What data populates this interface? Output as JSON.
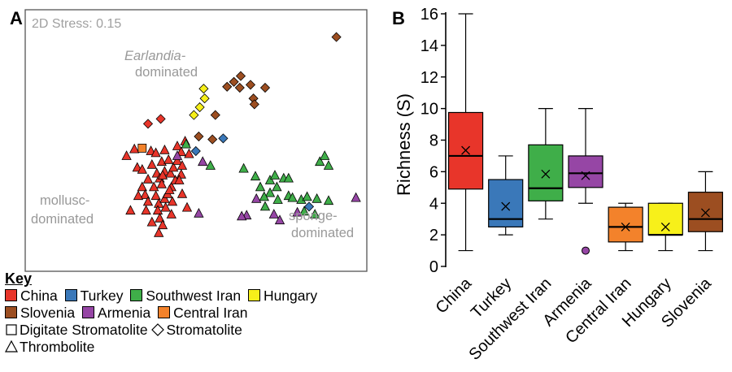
{
  "panel_a": {
    "label": "A",
    "stress": "2D Stress: 0.15",
    "annotations": {
      "earlandia_italic": "Earlandia-",
      "earlandia_rest": "dominated",
      "mollusc_1": "mollusc-",
      "mollusc_2": "dominated",
      "sponge_1": "sponge-",
      "sponge_2": "dominated"
    }
  },
  "panel_b": {
    "label": "B",
    "ylabel": "Richness (S)"
  },
  "key": {
    "title": "Key",
    "regions": [
      {
        "name": "China",
        "color": "#e8352a"
      },
      {
        "name": "Turkey",
        "color": "#3a78b9"
      },
      {
        "name": "Southwest Iran",
        "color": "#3fae49"
      },
      {
        "name": "Hungary",
        "color": "#f7f01a"
      },
      {
        "name": "Slovenia",
        "color": "#9c4e21"
      },
      {
        "name": "Armenia",
        "color": "#9646a5"
      },
      {
        "name": "Central Iran",
        "color": "#f3822b"
      }
    ],
    "shapes": [
      {
        "name": "Digitate Stromatolite",
        "icon": "square-icon"
      },
      {
        "name": "Stromatolite",
        "icon": "diamond-icon"
      },
      {
        "name": "Thrombolite",
        "icon": "triangle-icon"
      }
    ]
  },
  "chart_data": [
    {
      "type": "scatter",
      "title": "2D Stress: 0.15",
      "xlabel": "",
      "ylabel": "",
      "axes": "none",
      "series": [
        {
          "name": "China",
          "color": "#e8352a",
          "shape": "triangle",
          "points": [
            [
              -7.2,
              -1.0
            ],
            [
              -6.4,
              -0.3
            ],
            [
              -4.7,
              -0.5
            ],
            [
              -6.1,
              -2.2
            ],
            [
              -4.6,
              -1.9
            ],
            [
              -5.6,
              -2.4
            ],
            [
              -4.1,
              -2.8
            ],
            [
              -5.0,
              -3.4
            ],
            [
              -5.6,
              -4.2
            ],
            [
              -4.4,
              -4.2
            ],
            [
              -3.8,
              -3.3
            ],
            [
              -3.3,
              -2.6
            ],
            [
              -3.6,
              -1.6
            ],
            [
              -2.9,
              -1.4
            ],
            [
              -3.3,
              -0.4
            ],
            [
              -4.2,
              -0.7
            ],
            [
              -3.6,
              -3.9
            ],
            [
              -4.2,
              -5.1
            ],
            [
              -5.3,
              -5.0
            ],
            [
              -6.0,
              -5.1
            ],
            [
              -5.0,
              -5.7
            ],
            [
              -3.9,
              -5.9
            ],
            [
              -3.3,
              -5.4
            ],
            [
              -3.0,
              -4.9
            ],
            [
              -2.6,
              -4.2
            ],
            [
              -2.2,
              -3.5
            ],
            [
              -2.7,
              -2.8
            ],
            [
              -2.4,
              -2.2
            ],
            [
              -2.0,
              -1.5
            ],
            [
              -1.5,
              -2.0
            ],
            [
              -1.6,
              -2.9
            ],
            [
              -1.8,
              -3.5
            ],
            [
              -3.2,
              -6.3
            ],
            [
              -4.0,
              -6.6
            ],
            [
              -5.2,
              -6.6
            ],
            [
              -6.8,
              -6.6
            ],
            [
              -2.6,
              -7.0
            ],
            [
              -1.5,
              -4.9
            ],
            [
              -2.5,
              -5.7
            ],
            [
              -3.8,
              -7.4
            ],
            [
              -4.6,
              -7.8
            ],
            [
              -3.9,
              -8.9
            ],
            [
              -3.5,
              -8.1
            ],
            [
              -2.8,
              -4.5
            ],
            [
              -3.5,
              -3.0
            ],
            [
              -1.0,
              -6.3
            ],
            [
              -2.0,
              0.0
            ],
            [
              -1.2,
              0.5
            ],
            [
              -0.8,
              -0.8
            ],
            [
              -1.6,
              -0.6
            ]
          ]
        },
        {
          "name": "China",
          "color": "#e8352a",
          "shape": "diamond",
          "points": [
            [
              -5.0,
              2.3
            ],
            [
              -3.7,
              2.8
            ]
          ]
        },
        {
          "name": "Turkey",
          "color": "#3a78b9",
          "shape": "diamond",
          "points": [
            [
              -0.1,
              -0.5
            ],
            [
              2.7,
              0.8
            ],
            [
              11.5,
              -6.2
            ]
          ]
        },
        {
          "name": "Southwest Iran",
          "color": "#3fae49",
          "shape": "triangle",
          "points": [
            [
              -1.1,
              0.2
            ],
            [
              1.4,
              -2.0
            ],
            [
              4.8,
              -2.3
            ],
            [
              6.0,
              -3.1
            ],
            [
              6.5,
              -4.2
            ],
            [
              7.5,
              -3.5
            ],
            [
              8.0,
              -3.0
            ],
            [
              8.9,
              -3.3
            ],
            [
              9.4,
              -3.3
            ],
            [
              8.2,
              -4.2
            ],
            [
              9.4,
              -5.1
            ],
            [
              8.3,
              -5.5
            ],
            [
              7.5,
              -4.8
            ],
            [
              6.9,
              -5.2
            ],
            [
              7.0,
              -6.2
            ],
            [
              9.8,
              -5.3
            ],
            [
              10.7,
              -5.5
            ],
            [
              11.3,
              -5.2
            ],
            [
              12.3,
              -5.4
            ],
            [
              11.0,
              -6.7
            ],
            [
              12.1,
              -7.0
            ],
            [
              13.5,
              -5.6
            ],
            [
              12.6,
              -1.6
            ],
            [
              13.1,
              -1.0
            ],
            [
              13.5,
              -2.0
            ]
          ]
        },
        {
          "name": "Hungary",
          "color": "#f7f01a",
          "shape": "diamond",
          "points": [
            [
              0.7,
              5.9
            ],
            [
              0.8,
              4.9
            ],
            [
              0.3,
              4.0
            ],
            [
              -0.3,
              3.2
            ]
          ]
        },
        {
          "name": "Slovenia",
          "color": "#9c4e21",
          "shape": "diamond",
          "points": [
            [
              14.3,
              11.2
            ],
            [
              4.5,
              7.2
            ],
            [
              3.8,
              6.6
            ],
            [
              3.1,
              6.1
            ],
            [
              4.4,
              6.0
            ],
            [
              5.5,
              6.3
            ],
            [
              7.0,
              6.0
            ],
            [
              5.8,
              4.9
            ],
            [
              5.9,
              4.3
            ],
            [
              1.9,
              3.2
            ],
            [
              0.2,
              1.0
            ],
            [
              1.6,
              0.7
            ]
          ]
        },
        {
          "name": "Armenia",
          "color": "#9646a5",
          "shape": "triangle",
          "points": [
            [
              -2.0,
              -1.0
            ],
            [
              0.6,
              -1.6
            ],
            [
              6.1,
              -5.4
            ],
            [
              5.1,
              -7.1
            ],
            [
              4.6,
              -7.2
            ],
            [
              7.9,
              -7.0
            ],
            [
              8.5,
              -7.6
            ],
            [
              10.3,
              -6.8
            ],
            [
              16.3,
              -5.3
            ],
            [
              0.2,
              -6.9
            ]
          ]
        },
        {
          "name": "Central Iran",
          "color": "#f3822b",
          "shape": "square",
          "points": [
            [
              -5.6,
              -0.2
            ]
          ]
        }
      ]
    },
    {
      "type": "box",
      "title": "",
      "xlabel": "",
      "ylabel": "Richness (S)",
      "ylim": [
        0,
        16
      ],
      "yticks": [
        0,
        2,
        4,
        6,
        8,
        10,
        12,
        14,
        16
      ],
      "categories": [
        "China",
        "Turkey",
        "Southwest Iran",
        "Armenia",
        "Central Iran",
        "Hungary",
        "Slovenia"
      ],
      "boxes": [
        {
          "category": "China",
          "color": "#e8352a",
          "min": 1,
          "q1": 4.9,
          "median": 7,
          "q3": 9.75,
          "max": 16,
          "mean": 7.35,
          "outliers": []
        },
        {
          "category": "Turkey",
          "color": "#3a78b9",
          "min": 2,
          "q1": 2.5,
          "median": 3,
          "q3": 5.5,
          "max": 7,
          "mean": 3.8,
          "outliers": []
        },
        {
          "category": "Southwest Iran",
          "color": "#3fae49",
          "min": 3,
          "q1": 4.15,
          "median": 4.95,
          "q3": 7.7,
          "max": 10,
          "mean": 5.85,
          "outliers": []
        },
        {
          "category": "Armenia",
          "color": "#9646a5",
          "min": 4,
          "q1": 5,
          "median": 5.9,
          "q3": 7,
          "max": 10,
          "mean": 5.75,
          "outliers": [
            1
          ]
        },
        {
          "category": "Central Iran",
          "color": "#f3822b",
          "min": 1,
          "q1": 1.55,
          "median": 2.5,
          "q3": 3.75,
          "max": 4,
          "mean": 2.5,
          "outliers": []
        },
        {
          "category": "Hungary",
          "color": "#f7f01a",
          "min": 1,
          "q1": 2,
          "median": 2,
          "q3": 4,
          "max": 4,
          "mean": 2.5,
          "outliers": []
        },
        {
          "category": "Slovenia",
          "color": "#9c4e21",
          "min": 1,
          "q1": 2.2,
          "median": 3,
          "q3": 4.7,
          "max": 6,
          "mean": 3.4,
          "outliers": []
        }
      ]
    }
  ]
}
